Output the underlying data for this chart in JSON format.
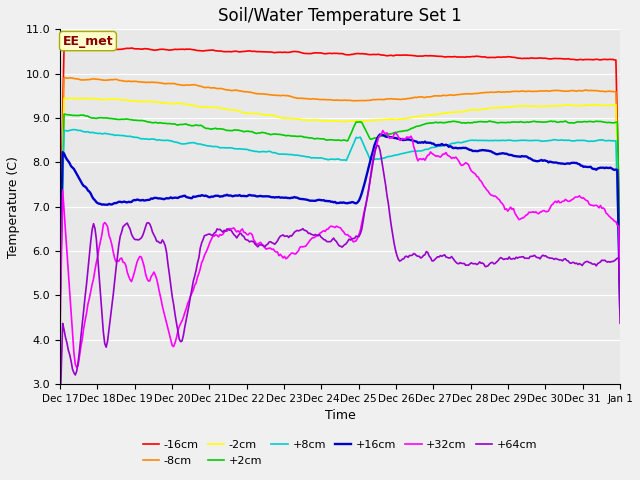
{
  "title": "Soil/Water Temperature Set 1",
  "ylabel": "Temperature (C)",
  "xlabel": "Time",
  "annotation": "EE_met",
  "ylim": [
    3.0,
    11.0
  ],
  "yticks": [
    3.0,
    4.0,
    5.0,
    6.0,
    7.0,
    8.0,
    9.0,
    10.0,
    11.0
  ],
  "x_tick_labels": [
    "Dec 17",
    "Dec 18",
    "Dec 19",
    "Dec 20",
    "Dec 21",
    "Dec 22",
    "Dec 23",
    "Dec 24",
    "Dec 25",
    "Dec 26",
    "Dec 27",
    "Dec 28",
    "Dec 29",
    "Dec 30",
    "Dec 31",
    "Jan 1"
  ],
  "series_labels": [
    "-16cm",
    "-8cm",
    "-2cm",
    "+2cm",
    "+8cm",
    "+16cm",
    "+32cm",
    "+64cm"
  ],
  "series_colors": [
    "#FF0000",
    "#FF8800",
    "#FFFF00",
    "#00CC00",
    "#00CCCC",
    "#0000CC",
    "#FF00FF",
    "#9900CC"
  ],
  "bg_color": "#E8E8E8",
  "fig_color": "#F0F0F0",
  "grid_color": "#FFFFFF",
  "title_fontsize": 12,
  "tick_fontsize": 8,
  "ylabel_fontsize": 9
}
